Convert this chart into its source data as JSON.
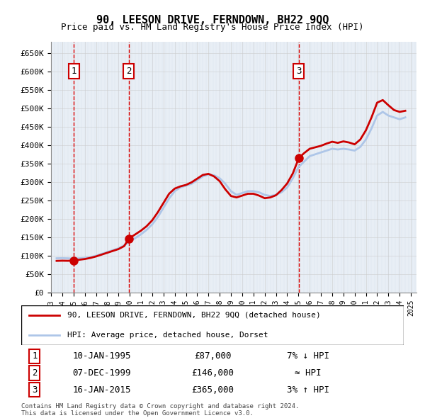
{
  "title": "90, LEESON DRIVE, FERNDOWN, BH22 9QQ",
  "subtitle": "Price paid vs. HM Land Registry's House Price Index (HPI)",
  "legend_line1": "90, LEESON DRIVE, FERNDOWN, BH22 9QQ (detached house)",
  "legend_line2": "HPI: Average price, detached house, Dorset",
  "footer1": "Contains HM Land Registry data © Crown copyright and database right 2024.",
  "footer2": "This data is licensed under the Open Government Licence v3.0.",
  "sales": [
    {
      "num": 1,
      "date_num": 1995.03,
      "price": 87000,
      "label": "10-JAN-1995",
      "price_str": "£87,000",
      "rel": "7% ↓ HPI"
    },
    {
      "num": 2,
      "date_num": 1999.92,
      "price": 146000,
      "label": "07-DEC-1999",
      "price_str": "£146,000",
      "rel": "≈ HPI"
    },
    {
      "num": 3,
      "date_num": 2015.04,
      "price": 365000,
      "label": "16-JAN-2015",
      "price_str": "£365,000",
      "rel": "3% ↑ HPI"
    }
  ],
  "hpi_dates": [
    1993.5,
    1994.0,
    1994.5,
    1995.0,
    1995.5,
    1996.0,
    1996.5,
    1997.0,
    1997.5,
    1998.0,
    1998.5,
    1999.0,
    1999.5,
    2000.0,
    2000.5,
    2001.0,
    2001.5,
    2002.0,
    2002.5,
    2003.0,
    2003.5,
    2004.0,
    2004.5,
    2005.0,
    2005.5,
    2006.0,
    2006.5,
    2007.0,
    2007.5,
    2008.0,
    2008.5,
    2009.0,
    2009.5,
    2010.0,
    2010.5,
    2011.0,
    2011.5,
    2012.0,
    2012.5,
    2013.0,
    2013.5,
    2014.0,
    2014.5,
    2015.0,
    2015.5,
    2016.0,
    2016.5,
    2017.0,
    2017.5,
    2018.0,
    2018.5,
    2019.0,
    2019.5,
    2020.0,
    2020.5,
    2021.0,
    2021.5,
    2022.0,
    2022.5,
    2023.0,
    2023.5,
    2024.0,
    2024.5
  ],
  "hpi_values": [
    93000,
    93500,
    93000,
    92000,
    93000,
    94000,
    96000,
    100000,
    105000,
    110000,
    115000,
    120000,
    128000,
    138000,
    148000,
    158000,
    170000,
    185000,
    205000,
    230000,
    255000,
    275000,
    285000,
    290000,
    295000,
    305000,
    315000,
    320000,
    318000,
    310000,
    295000,
    275000,
    265000,
    270000,
    275000,
    275000,
    272000,
    265000,
    262000,
    265000,
    272000,
    285000,
    310000,
    340000,
    355000,
    370000,
    375000,
    380000,
    385000,
    390000,
    388000,
    390000,
    388000,
    385000,
    395000,
    415000,
    445000,
    480000,
    490000,
    480000,
    475000,
    470000,
    475000
  ],
  "price_line_dates": [
    1993.5,
    1994.0,
    1994.5,
    1995.03,
    1995.5,
    1996.0,
    1996.5,
    1997.0,
    1997.5,
    1998.0,
    1998.5,
    1999.0,
    1999.5,
    1999.92,
    2000.0,
    2000.5,
    2001.0,
    2001.5,
    2002.0,
    2002.5,
    2003.0,
    2003.5,
    2004.0,
    2004.5,
    2005.0,
    2005.5,
    2006.0,
    2006.5,
    2007.0,
    2007.5,
    2008.0,
    2008.5,
    2009.0,
    2009.5,
    2010.0,
    2010.5,
    2011.0,
    2011.5,
    2012.0,
    2012.5,
    2013.0,
    2013.5,
    2014.0,
    2014.5,
    2015.04,
    2015.5,
    2016.0,
    2016.5,
    2017.0,
    2017.5,
    2018.0,
    2018.5,
    2019.0,
    2019.5,
    2020.0,
    2020.5,
    2021.0,
    2021.5,
    2022.0,
    2022.5,
    2023.0,
    2023.5,
    2024.0,
    2024.5
  ],
  "price_line_values": [
    86000,
    86500,
    86200,
    87000,
    89000,
    91000,
    94000,
    98000,
    103000,
    108000,
    113000,
    118000,
    126000,
    146000,
    148000,
    158000,
    168000,
    180000,
    196000,
    218000,
    243000,
    268000,
    282000,
    288000,
    292000,
    299000,
    309000,
    319000,
    322000,
    315000,
    302000,
    280000,
    262000,
    258000,
    263000,
    268000,
    268000,
    263000,
    256000,
    258000,
    264000,
    278000,
    296000,
    323000,
    365000,
    378000,
    390000,
    394000,
    398000,
    404000,
    409000,
    406000,
    410000,
    407000,
    402000,
    415000,
    440000,
    475000,
    515000,
    522000,
    508000,
    495000,
    490000,
    493000
  ],
  "xlim": [
    1993.0,
    2025.5
  ],
  "ylim": [
    0,
    680000
  ],
  "yticks": [
    0,
    50000,
    100000,
    150000,
    200000,
    250000,
    300000,
    350000,
    400000,
    450000,
    500000,
    550000,
    600000,
    650000
  ],
  "xtick_years": [
    1993,
    1994,
    1995,
    1996,
    1997,
    1998,
    1999,
    2000,
    2001,
    2002,
    2003,
    2004,
    2005,
    2006,
    2007,
    2008,
    2009,
    2010,
    2011,
    2012,
    2013,
    2014,
    2015,
    2016,
    2017,
    2018,
    2019,
    2020,
    2021,
    2022,
    2023,
    2024,
    2025
  ],
  "hpi_color": "#aec6e8",
  "price_color": "#cc0000",
  "vline_color": "#dd0000",
  "bg_hatch_color": "#e8eef5",
  "grid_color": "#cccccc",
  "sale_marker_color": "#cc0000",
  "box_color": "#cc0000"
}
